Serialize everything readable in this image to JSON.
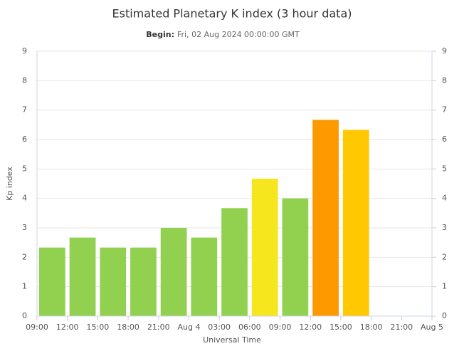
{
  "chart_data": {
    "type": "bar",
    "title": "Estimated Planetary K index (3 hour data)",
    "subtitle_label": "Begin:",
    "subtitle": "Fri, 02 Aug 2024 00:00:00 GMT",
    "xlabel": "Universal Time",
    "ylabel": "Kp index",
    "x": [
      0,
      3,
      6,
      9,
      12,
      15,
      18,
      21,
      24,
      27,
      30
    ],
    "values": [
      2.33,
      2.67,
      2.33,
      2.33,
      3,
      2.67,
      3.67,
      4.67,
      4,
      6.67,
      6.33
    ],
    "colors": [
      "#92d050",
      "#92d050",
      "#92d050",
      "#92d050",
      "#92d050",
      "#92d050",
      "#92d050",
      "#f5e61e",
      "#92d050",
      "#ff9900",
      "#ffc800"
    ],
    "xlim": [
      0,
      39
    ],
    "xticks": [
      {
        "value": 0,
        "label": "09:00"
      },
      {
        "value": 3,
        "label": "12:00"
      },
      {
        "value": 6,
        "label": "15:00"
      },
      {
        "value": 9,
        "label": "18:00"
      },
      {
        "value": 12,
        "label": "21:00"
      },
      {
        "value": 15,
        "label": "Aug 4"
      },
      {
        "value": 18,
        "label": "03:00"
      },
      {
        "value": 21,
        "label": "06:00"
      },
      {
        "value": 24,
        "label": "09:00"
      },
      {
        "value": 27,
        "label": "12:00"
      },
      {
        "value": 30,
        "label": "15:00"
      },
      {
        "value": 33,
        "label": "18:00"
      },
      {
        "value": 36,
        "label": "21:00"
      },
      {
        "value": 39,
        "label": "Aug 5"
      }
    ],
    "ylim": [
      0,
      9
    ],
    "yticks": [
      0,
      1,
      2,
      3,
      4,
      5,
      6,
      7,
      8,
      9
    ],
    "y2lim": [
      0,
      9
    ],
    "y2ticks": [
      0,
      1,
      2,
      3,
      4,
      5,
      6,
      7,
      8,
      9
    ],
    "grid": true
  }
}
